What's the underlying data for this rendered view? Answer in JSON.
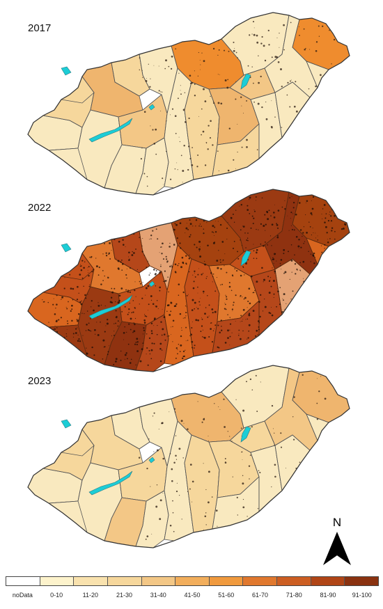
{
  "panels": [
    {
      "year": "2017",
      "fills": [
        "#f9e9bf",
        "#f6d79c",
        "#efb56e",
        "#f6d79c",
        "#f9e9bf",
        "#f3c786",
        "#f9e9bf",
        "#f9e9bf",
        "#f9e9bf",
        "#ef8c2e"
      ],
      "lake": "#1ccdd6",
      "outline": "#555555",
      "speckle": "#2a1a10",
      "speckle_level": 0.15
    },
    {
      "year": "2022",
      "fills": [
        "#d9661f",
        "#c4501a",
        "#e0782e",
        "#b5471a",
        "#9b3a12",
        "#c4501a",
        "#8f3210",
        "#b5471a",
        "#e4a274",
        "#a5420f"
      ],
      "lake": "#1ccdd6",
      "outline": "#5a2a10",
      "speckle": "#1a0c06",
      "speckle_level": 0.8
    },
    {
      "year": "2023",
      "fills": [
        "#f9e9bf",
        "#f6d79c",
        "#f6d79c",
        "#f9e9bf",
        "#f9e9bf",
        "#f6d79c",
        "#f3c786",
        "#f9e9bf",
        "#f9e9bf",
        "#efb56e"
      ],
      "lake": "#1ccdd6",
      "outline": "#555555",
      "speckle": "#2a1a10",
      "speckle_level": 0.08
    }
  ],
  "legend": {
    "items": [
      {
        "label": "noData",
        "color": "#ffffff"
      },
      {
        "label": "0-10",
        "color": "#fdf3cc"
      },
      {
        "label": "11-20",
        "color": "#f9e2ae"
      },
      {
        "label": "21-30",
        "color": "#f6d79c"
      },
      {
        "label": "31-40",
        "color": "#f3c786"
      },
      {
        "label": "41-50",
        "color": "#f2ae5c"
      },
      {
        "label": "51-60",
        "color": "#f09a3e"
      },
      {
        "label": "61-70",
        "color": "#e0782e"
      },
      {
        "label": "71-80",
        "color": "#cc5e22"
      },
      {
        "label": "81-90",
        "color": "#b04516"
      },
      {
        "label": "91-100",
        "color": "#8a3210"
      }
    ]
  },
  "north_label": "N"
}
